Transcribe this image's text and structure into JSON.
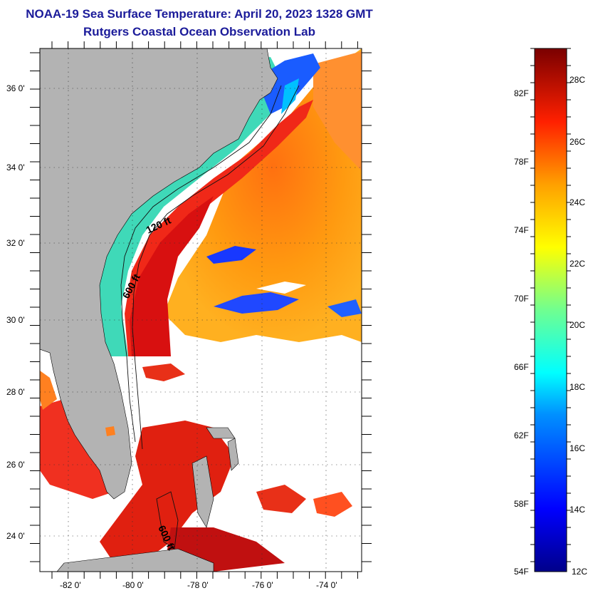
{
  "header": {
    "line1": "NOAA-19 Sea Surface Temperature:  April 20, 2023 1328 GMT",
    "line2": "Rutgers Coastal Ocean Observation Lab"
  },
  "map": {
    "lat_labels": [
      "36 0'",
      "34 0'",
      "32 0'",
      "30 0'",
      "28 0'",
      "26 0'",
      "24 0'"
    ],
    "lon_labels": [
      "-82 0'",
      "-80 0'",
      "-78 0'",
      "-76 0'",
      "-74 0'"
    ],
    "lat_range": [
      23,
      37
    ],
    "lon_range": [
      -83,
      -73
    ],
    "contours": [
      "120 ft",
      "600 ft",
      "600 ft"
    ],
    "colors": {
      "land": "#b3b3b3",
      "cloud": "#ffffff",
      "gulfstream": "#e8281a",
      "shelf": "#30d0b0"
    }
  },
  "colorbar": {
    "fahrenheit": [
      "82F",
      "78F",
      "74F",
      "70F",
      "66F",
      "62F",
      "58F",
      "54F"
    ],
    "celsius": [
      "28C",
      "26C",
      "24C",
      "22C",
      "20C",
      "18C",
      "16C",
      "14C",
      "12C"
    ]
  }
}
